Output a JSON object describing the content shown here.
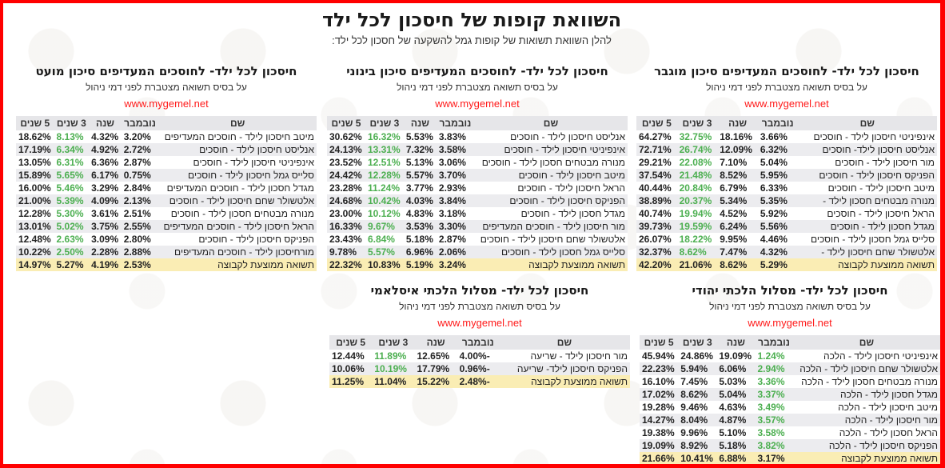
{
  "header": {
    "title": "השוואת קופות של חיסכון לכל ילד",
    "subtitle": "להלן השוואת תשואות של קופות גמל להשקעה של חסכון לכל ילד:"
  },
  "columns": [
    "שם",
    "נובמבר",
    "שנה",
    "3 שנים",
    "5 שנים"
  ],
  "panels": [
    {
      "id": "high-risk",
      "title": "חיסכון לכל ילד- לחוסכים המעדיפים סיכון מוגבר",
      "subtitle": "על בסיס תשואה מצטברת לפני דמי ניהול",
      "link": "www.mygemel.net",
      "highlight_col": 3,
      "rows": [
        [
          "אינפיניטי חיסכון לילד - חוסכים",
          "3.66%",
          "18.16%",
          "32.75%",
          "64.27%"
        ],
        [
          "אנליסט חיסכון לילד- חוסכים",
          "6.32%",
          "12.09%",
          "26.74%",
          "72.71%"
        ],
        [
          "מור חיסכון לילד - חוסכים",
          "5.04%",
          "7.10%",
          "22.08%",
          "29.21%"
        ],
        [
          "הפניקס חיסכון לילד - חוסכים",
          "5.95%",
          "8.52%",
          "21.48%",
          "37.54%"
        ],
        [
          "מיטב חיסכון לילד - חוסכים",
          "6.33%",
          "6.79%",
          "20.84%",
          "40.44%"
        ],
        [
          "מנורה מבטחים חסכון לילד -",
          "5.35%",
          "5.34%",
          "20.37%",
          "38.89%"
        ],
        [
          "הראל חיסכון לילד - חוסכים",
          "5.92%",
          "4.52%",
          "19.94%",
          "40.74%"
        ],
        [
          "מגדל חסכון לילד - חוסכים",
          "5.56%",
          "6.24%",
          "19.59%",
          "39.73%"
        ],
        [
          "סלייס גמל חסכון לילד - חוסכים",
          "4.46%",
          "9.95%",
          "18.22%",
          "26.07%"
        ],
        [
          "אלטשולר שחם חיסכון לילד -",
          "4.32%",
          "7.47%",
          "8.62%",
          "32.37%"
        ]
      ],
      "average": [
        "תשואה ממוצעת לקבוצה",
        "5.29%",
        "8.62%",
        "21.06%",
        "42.20%"
      ]
    },
    {
      "id": "medium-risk",
      "title": "חיסכון לכל ילד- לחוסכים המעדיפים סיכון בינוני",
      "subtitle": "על בסיס תשואה מצטברת לפני דמי ניהול",
      "link": "www.mygemel.net",
      "highlight_col": 3,
      "rows": [
        [
          "אנליסט חיסכון לילד - חוסכים",
          "3.83%",
          "5.53%",
          "16.32%",
          "30.62%"
        ],
        [
          "אינפיניטי חיסכון לילד - חוסכים",
          "3.58%",
          "7.32%",
          "13.31%",
          "24.13%"
        ],
        [
          "מנורה מבטחים חסכון לילד - חוסכים",
          "3.06%",
          "5.13%",
          "12.51%",
          "23.52%"
        ],
        [
          "מיטב חיסכון לילד - חוסכים",
          "3.70%",
          "5.57%",
          "12.28%",
          "24.42%"
        ],
        [
          "הראל חיסכון לילד - חוסכים",
          "2.93%",
          "3.77%",
          "11.24%",
          "23.28%"
        ],
        [
          "הפניקס חיסכון לילד - חוסכים",
          "3.84%",
          "4.03%",
          "10.42%",
          "24.68%"
        ],
        [
          "מגדל חסכון לילד - חוסכים",
          "3.18%",
          "4.83%",
          "10.12%",
          "23.00%"
        ],
        [
          "מור חיסכון לילד - חוסכים המעדיפים",
          "3.30%",
          "3.53%",
          "9.67%",
          "16.33%"
        ],
        [
          "אלטשולר שחם חיסכון לילד - חוסכים",
          "2.87%",
          "5.18%",
          "6.84%",
          "23.43%"
        ],
        [
          "סלייס גמל חסכון לילד - חוסכים",
          "2.06%",
          "6.96%",
          "5.57%",
          "9.78%"
        ]
      ],
      "average": [
        "תשואה ממוצעת לקבוצה",
        "3.24%",
        "5.19%",
        "10.83%",
        "22.32%"
      ]
    },
    {
      "id": "low-risk",
      "title": "חיסכון לכל ילד- לחוסכים המעדיפים סיכון מועט",
      "subtitle": "על בסיס תשואה מצטברת לפני דמי ניהול",
      "link": "www.mygemel.net",
      "highlight_col": 3,
      "rows": [
        [
          "מיטב חיסכון לילד - חוסכים המעדיפים",
          "3.20%",
          "4.32%",
          "8.13%",
          "18.62%"
        ],
        [
          "אנליסט חיסכון לילד - חוסכים",
          "2.72%",
          "4.92%",
          "6.34%",
          "17.19%"
        ],
        [
          "אינפיניטי חיסכון לילד - חוסכים",
          "2.87%",
          "6.36%",
          "6.31%",
          "13.05%"
        ],
        [
          "סלייס גמל חיסכון לילד - חוסכים",
          "0.75%",
          "6.17%",
          "5.65%",
          "15.89%"
        ],
        [
          "מגדל חסכון לילד - חוסכים המעדיפים",
          "2.84%",
          "3.29%",
          "5.46%",
          "16.00%"
        ],
        [
          "אלטשולר שחם חיסכון לילד - חוסכים",
          "2.13%",
          "4.09%",
          "5.39%",
          "21.00%"
        ],
        [
          "מנורה מבטחים חסכון לילד - חוסכים",
          "2.51%",
          "3.61%",
          "5.30%",
          "12.28%"
        ],
        [
          "הראל חיסכון לילד - חוסכים המעדיפים",
          "2.55%",
          "3.75%",
          "5.02%",
          "13.01%"
        ],
        [
          "הפניקס חיסכון לילד - חוסכים",
          "2.80%",
          "3.09%",
          "2.63%",
          "12.48%"
        ],
        [
          "מורחיסכון לילד - חוסכים המעדיפים",
          "2.88%",
          "2.28%",
          "2.50%",
          "10.22%"
        ]
      ],
      "average": [
        "תשואה ממוצעת לקבוצה",
        "2.53%",
        "4.19%",
        "5.27%",
        "14.97%"
      ]
    },
    {
      "id": "jewish-halacha",
      "title": "חיסכון לכל ילד- מסלול הלכתי יהודי",
      "subtitle": "על בסיס תשואה מצטברת לפני דמי ניהול",
      "link": "www.mygemel.net",
      "highlight_col": 1,
      "rows": [
        [
          "אינפיניטי חיסכון לילד - הלכה",
          "1.24%",
          "19.09%",
          "24.86%",
          "45.94%"
        ],
        [
          "אלטשולר שחם חיסכון לילד - הלכה",
          "2.94%",
          "6.06%",
          "5.94%",
          "22.23%"
        ],
        [
          "מנורה מבטחים חסכון לילד - הלכה",
          "3.36%",
          "5.03%",
          "7.45%",
          "16.10%"
        ],
        [
          "מגדל חסכון לילד - הלכה",
          "3.37%",
          "5.04%",
          "8.62%",
          "17.02%"
        ],
        [
          "מיטב חיסכון לילד - הלכה",
          "3.49%",
          "4.63%",
          "9.46%",
          "19.28%"
        ],
        [
          "מור חיסכון לילד - הלכה",
          "3.57%",
          "4.87%",
          "8.04%",
          "14.27%"
        ],
        [
          "הראל חסכון לילד - הלכה",
          "3.58%",
          "5.10%",
          "9.96%",
          "19.38%"
        ],
        [
          "הפניקס חיסכון לילד - הלכה",
          "3.82%",
          "5.18%",
          "8.92%",
          "19.09%"
        ]
      ],
      "average": [
        "תשואה ממוצעת לקבוצה",
        "3.17%",
        "6.88%",
        "10.41%",
        "21.66%"
      ]
    },
    {
      "id": "islamic",
      "title": "חיסכון לכל ילד- מסלול הלכתי איסלאמי",
      "subtitle": "על בסיס תשואה מצטברת לפני דמי ניהול",
      "link": "www.mygemel.net",
      "highlight_col": 3,
      "rows": [
        [
          "מור חיסכון לילד - שריעה",
          "-4.00%",
          "12.65%",
          "11.89%",
          "12.44%"
        ],
        [
          "הפניקס חיסכון לילד- שריעה",
          "-0.96%",
          "17.79%",
          "10.19%",
          "10.06%"
        ]
      ],
      "average": [
        "תשואה ממוצעת לקבוצה",
        "-2.48%",
        "15.22%",
        "11.04%",
        "11.25%"
      ]
    }
  ],
  "colors": {
    "border": "#ff0000",
    "link": "#ff1a1a",
    "highlight_green": "#4caf50",
    "header_bg": "#e6e6e9",
    "stripe_bg": "#ececef",
    "average_bg": "#faedb4"
  }
}
